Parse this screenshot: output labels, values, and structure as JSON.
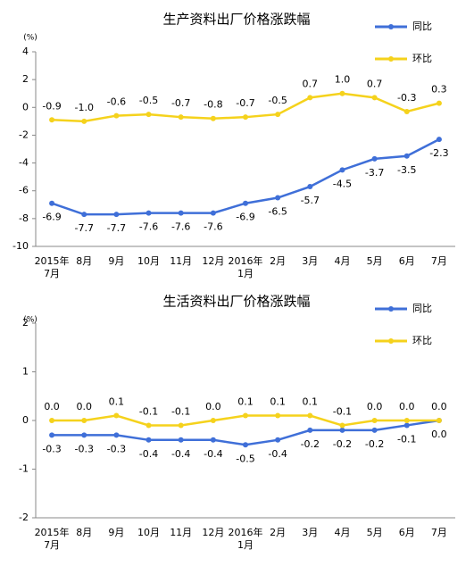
{
  "chart_data": [
    {
      "type": "line",
      "title": "生产资料出厂价格涨跌幅",
      "unit": "(%)",
      "categories": [
        "2015年\n7月",
        "8月",
        "9月",
        "10月",
        "11月",
        "12月",
        "2016年\n1月",
        "2月",
        "3月",
        "4月",
        "5月",
        "6月",
        "7月"
      ],
      "series": [
        {
          "name": "同比",
          "color": "#3f6fd8",
          "values": [
            -6.9,
            -7.7,
            -7.7,
            -7.6,
            -7.6,
            -7.6,
            -6.9,
            -6.5,
            -5.7,
            -4.5,
            -3.7,
            -3.5,
            -2.3
          ],
          "value_labels": [
            "-6.9",
            "-7.7",
            "-7.7",
            "-7.6",
            "-7.6",
            "-7.6",
            "-6.9",
            "-6.5",
            "-5.7",
            "-4.5",
            "-3.7",
            "-3.5",
            "-2.3"
          ]
        },
        {
          "name": "环比",
          "color": "#f5d21c",
          "values": [
            -0.9,
            -1.0,
            -0.6,
            -0.5,
            -0.7,
            -0.8,
            -0.7,
            -0.5,
            0.7,
            1.0,
            0.7,
            -0.3,
            0.3
          ],
          "value_labels": [
            "-0.9",
            "-1.0",
            "-0.6",
            "-0.5",
            "-0.7",
            "-0.8",
            "-0.7",
            "-0.5",
            "0.7",
            "1.0",
            "0.7",
            "-0.3",
            "0.3"
          ]
        }
      ],
      "ylim": [
        -10,
        4
      ],
      "yticks": [
        -10,
        -8,
        -6,
        -4,
        -2,
        0,
        2,
        4
      ],
      "legend": "top-right"
    },
    {
      "type": "line",
      "title": "生活资料出厂价格涨跌幅",
      "unit": "(%)",
      "categories": [
        "2015年\n7月",
        "8月",
        "9月",
        "10月",
        "11月",
        "12月",
        "2016年\n1月",
        "2月",
        "3月",
        "4月",
        "5月",
        "6月",
        "7月"
      ],
      "series": [
        {
          "name": "同比",
          "color": "#3f6fd8",
          "values": [
            -0.3,
            -0.3,
            -0.3,
            -0.4,
            -0.4,
            -0.4,
            -0.5,
            -0.4,
            -0.2,
            -0.2,
            -0.2,
            -0.1,
            0.0
          ],
          "value_labels": [
            "-0.3",
            "-0.3",
            "-0.3",
            "-0.4",
            "-0.4",
            "-0.4",
            "-0.5",
            "-0.4",
            "-0.2",
            "-0.2",
            "-0.2",
            "-0.1",
            "0.0"
          ]
        },
        {
          "name": "环比",
          "color": "#f5d21c",
          "values": [
            0.0,
            0.0,
            0.1,
            -0.1,
            -0.1,
            0.0,
            0.1,
            0.1,
            0.1,
            -0.1,
            0.0,
            0.0,
            0.0
          ],
          "value_labels": [
            "0.0",
            "0.0",
            "0.1",
            "-0.1",
            "-0.1",
            "0.0",
            "0.1",
            "0.1",
            "0.1",
            "-0.1",
            "0.0",
            "0.0",
            "0.0"
          ]
        }
      ],
      "ylim": [
        -2,
        2
      ],
      "yticks": [
        -2,
        -1,
        0,
        1,
        2
      ],
      "legend": "top-right"
    }
  ]
}
